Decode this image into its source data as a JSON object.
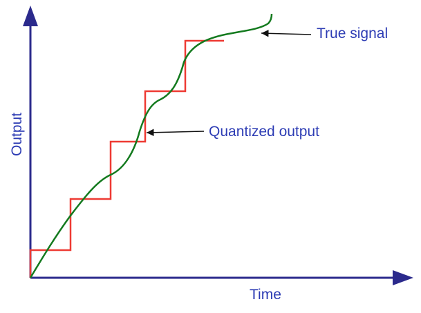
{
  "labels": {
    "true_signal": "True signal",
    "quantized_output": "Quantized output",
    "x_axis": "Time",
    "y_axis": "Output"
  },
  "colors": {
    "axes": "#2b2a8c",
    "text": "#2d3cb4",
    "quantized": "#ee3a33",
    "true_signal": "#137a1e",
    "pointer": "#111111",
    "background": "#ffffff"
  }
}
